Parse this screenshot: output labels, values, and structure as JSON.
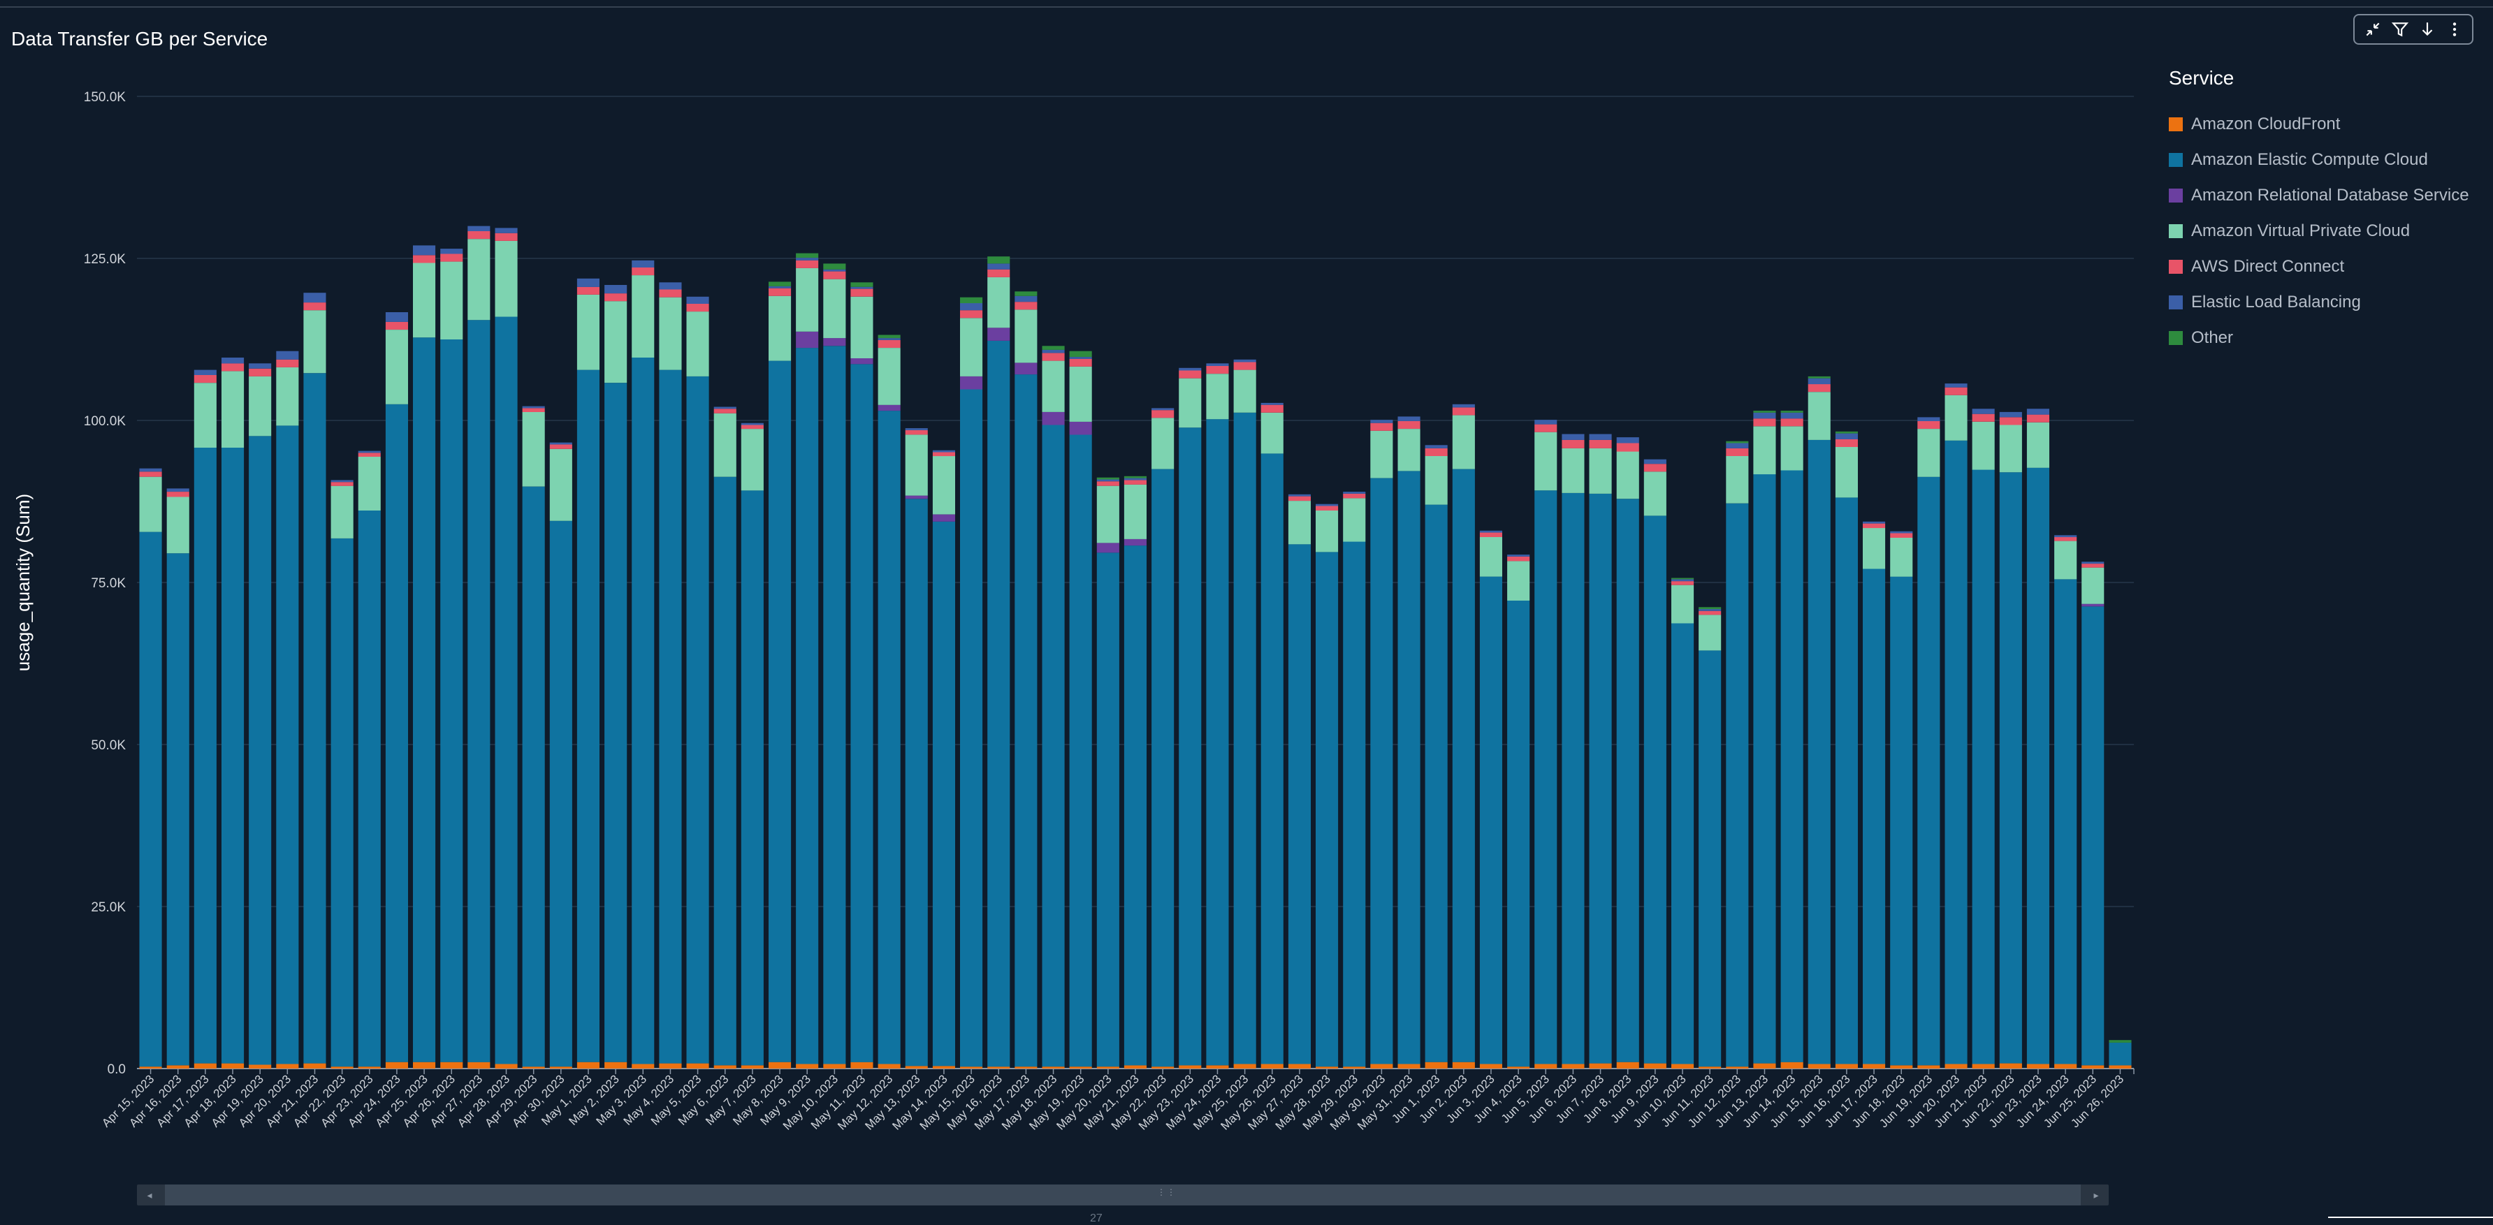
{
  "widget": {
    "title": "Data Transfer GB per Service",
    "toolbar": [
      {
        "name": "collapse-icon",
        "label": "Collapse"
      },
      {
        "name": "filter-icon",
        "label": "Filter"
      },
      {
        "name": "download-icon",
        "label": "Download"
      },
      {
        "name": "more-options-icon",
        "label": "More options"
      }
    ],
    "footer_text": "27"
  },
  "chart_data": {
    "type": "bar",
    "stacked": true,
    "title": "Data Transfer GB per Service",
    "xlabel": "",
    "ylabel": "usage_quantity (Sum)",
    "ylim": [
      0,
      150000
    ],
    "yticks": [
      0,
      25000,
      50000,
      75000,
      100000,
      125000,
      150000
    ],
    "ytick_labels": [
      "0.0",
      "25.0K",
      "50.0K",
      "75.0K",
      "100.0K",
      "125.0K",
      "150.0K"
    ],
    "grid": true,
    "legend_title": "Service",
    "legend_position": "right",
    "categories": [
      "Apr 15, 2023",
      "Apr 16, 2023",
      "Apr 17, 2023",
      "Apr 18, 2023",
      "Apr 19, 2023",
      "Apr 20, 2023",
      "Apr 21, 2023",
      "Apr 22, 2023",
      "Apr 23, 2023",
      "Apr 24, 2023",
      "Apr 25, 2023",
      "Apr 26, 2023",
      "Apr 27, 2023",
      "Apr 28, 2023",
      "Apr 29, 2023",
      "Apr 30, 2023",
      "May 1, 2023",
      "May 2, 2023",
      "May 3, 2023",
      "May 4, 2023",
      "May 5, 2023",
      "May 6, 2023",
      "May 7, 2023",
      "May 8, 2023",
      "May 9, 2023",
      "May 10, 2023",
      "May 11, 2023",
      "May 12, 2023",
      "May 13, 2023",
      "May 14, 2023",
      "May 15, 2023",
      "May 16, 2023",
      "May 17, 2023",
      "May 18, 2023",
      "May 19, 2023",
      "May 20, 2023",
      "May 21, 2023",
      "May 22, 2023",
      "May 23, 2023",
      "May 24, 2023",
      "May 25, 2023",
      "May 26, 2023",
      "May 27, 2023",
      "May 28, 2023",
      "May 29, 2023",
      "May 30, 2023",
      "May 31, 2023",
      "Jun 1, 2023",
      "Jun 2, 2023",
      "Jun 3, 2023",
      "Jun 4, 2023",
      "Jun 5, 2023",
      "Jun 6, 2023",
      "Jun 7, 2023",
      "Jun 8, 2023",
      "Jun 9, 2023",
      "Jun 10, 2023",
      "Jun 11, 2023",
      "Jun 12, 2023",
      "Jun 13, 2023",
      "Jun 14, 2023",
      "Jun 15, 2023",
      "Jun 16, 2023",
      "Jun 17, 2023",
      "Jun 18, 2023",
      "Jun 19, 2023",
      "Jun 20, 2023",
      "Jun 21, 2023",
      "Jun 22, 2023",
      "Jun 23, 2023",
      "Jun 24, 2023",
      "Jun 25, 2023",
      "Jun 26, 2023"
    ],
    "series": [
      {
        "name": "Amazon CloudFront",
        "color": "#ec7211",
        "values": [
          300,
          500,
          800,
          800,
          600,
          700,
          800,
          300,
          300,
          1000,
          1000,
          1000,
          1000,
          700,
          300,
          300,
          1000,
          1000,
          700,
          800,
          800,
          500,
          500,
          1000,
          700,
          700,
          1000,
          700,
          400,
          400,
          300,
          300,
          300,
          300,
          300,
          300,
          500,
          300,
          500,
          500,
          700,
          700,
          700,
          300,
          300,
          700,
          700,
          1000,
          1000,
          700,
          300,
          700,
          700,
          800,
          1000,
          800,
          700,
          300,
          300,
          800,
          1000,
          700,
          700,
          700,
          500,
          500,
          700,
          700,
          800,
          700,
          700,
          500,
          500
        ]
      },
      {
        "name": "Amazon Elastic Compute Cloud",
        "color": "#0f73a0",
        "values": [
          82500,
          79000,
          95000,
          95000,
          97000,
          98500,
          106500,
          81500,
          85800,
          101500,
          111800,
          111500,
          114500,
          115300,
          89500,
          84200,
          106800,
          104800,
          109000,
          107000,
          106000,
          90800,
          88700,
          108200,
          110500,
          110800,
          107700,
          100800,
          87500,
          84000,
          104500,
          112000,
          106800,
          99000,
          97500,
          79300,
          80200,
          92200,
          98400,
          99700,
          100500,
          94200,
          80200,
          79400,
          81000,
          90400,
          91500,
          86000,
          91500,
          75200,
          71900,
          88500,
          88100,
          87900,
          86900,
          84500,
          68000,
          64200,
          86900,
          90900,
          91300,
          96300,
          87400,
          76400,
          75400,
          90800,
          96200,
          91700,
          91200,
          92000,
          74800,
          70800,
          3500
        ]
      },
      {
        "name": "Amazon Relational Database Service",
        "color": "#6b3fa0",
        "values": [
          0,
          0,
          0,
          0,
          0,
          0,
          0,
          0,
          0,
          0,
          0,
          0,
          0,
          0,
          0,
          0,
          0,
          0,
          0,
          0,
          0,
          0,
          0,
          0,
          2500,
          1200,
          900,
          900,
          500,
          1100,
          2000,
          2000,
          1800,
          2000,
          2000,
          1500,
          1000,
          0,
          0,
          0,
          0,
          0,
          0,
          0,
          0,
          0,
          0,
          0,
          0,
          0,
          0,
          0,
          0,
          0,
          0,
          0,
          0,
          0,
          0,
          0,
          0,
          0,
          0,
          0,
          0,
          0,
          0,
          0,
          0,
          0,
          0,
          400,
          0
        ]
      },
      {
        "name": "Amazon Virtual Private Cloud",
        "color": "#7dd3b0",
        "values": [
          8500,
          8700,
          10000,
          11800,
          9200,
          9000,
          9700,
          8100,
          8300,
          11500,
          11500,
          12000,
          12500,
          11700,
          11500,
          11100,
          11600,
          12600,
          12700,
          11200,
          10000,
          9800,
          9500,
          10000,
          9800,
          9100,
          9500,
          8800,
          9400,
          9000,
          9000,
          7800,
          8200,
          7900,
          8500,
          8800,
          8400,
          7900,
          7600,
          7000,
          6600,
          6300,
          6700,
          6400,
          6700,
          7300,
          6500,
          7500,
          8300,
          6100,
          6100,
          9000,
          6900,
          7000,
          7300,
          6800,
          5900,
          5500,
          7300,
          7400,
          6800,
          7400,
          7800,
          6300,
          6000,
          7400,
          7000,
          7400,
          7300,
          7000,
          5900,
          5600,
          0
        ]
      },
      {
        "name": "AWS Direct Connect",
        "color": "#e85468",
        "values": [
          800,
          800,
          1200,
          1200,
          1200,
          1200,
          1200,
          600,
          600,
          1200,
          1200,
          1200,
          1200,
          1200,
          600,
          700,
          1200,
          1200,
          1200,
          1200,
          1200,
          700,
          600,
          1200,
          1200,
          1200,
          1200,
          1200,
          700,
          600,
          1200,
          1200,
          1200,
          1200,
          1200,
          700,
          700,
          1200,
          1200,
          1200,
          1200,
          1200,
          700,
          700,
          700,
          1200,
          1200,
          1200,
          1200,
          700,
          700,
          1200,
          1300,
          1300,
          1300,
          1200,
          600,
          600,
          1200,
          1200,
          1200,
          1200,
          1200,
          700,
          700,
          1200,
          1200,
          1200,
          1200,
          1200,
          600,
          600,
          0
        ]
      },
      {
        "name": "Elastic Load Balancing",
        "color": "#3b5fa8",
        "values": [
          500,
          500,
          800,
          900,
          800,
          1300,
          1500,
          300,
          300,
          1500,
          1500,
          800,
          800,
          800,
          300,
          300,
          1300,
          1300,
          1100,
          1100,
          1100,
          300,
          300,
          300,
          400,
          300,
          300,
          300,
          300,
          300,
          1100,
          900,
          900,
          500,
          300,
          300,
          300,
          300,
          400,
          400,
          400,
          300,
          300,
          300,
          300,
          500,
          700,
          500,
          500,
          300,
          300,
          700,
          900,
          900,
          900,
          700,
          300,
          300,
          800,
          900,
          900,
          900,
          900,
          300,
          300,
          600,
          600,
          800,
          800,
          900,
          300,
          300,
          0
        ]
      },
      {
        "name": "Other",
        "color": "#2e8b3e",
        "values": [
          0,
          0,
          0,
          0,
          0,
          0,
          0,
          0,
          0,
          0,
          0,
          0,
          0,
          0,
          0,
          0,
          0,
          0,
          0,
          0,
          0,
          0,
          0,
          700,
          700,
          900,
          700,
          500,
          0,
          0,
          900,
          1100,
          700,
          600,
          900,
          300,
          300,
          0,
          0,
          0,
          0,
          0,
          0,
          0,
          0,
          0,
          0,
          0,
          0,
          0,
          0,
          0,
          0,
          0,
          0,
          0,
          200,
          300,
          300,
          300,
          300,
          300,
          300,
          0,
          0,
          0,
          0,
          0,
          0,
          0,
          0,
          0,
          400
        ]
      }
    ]
  }
}
